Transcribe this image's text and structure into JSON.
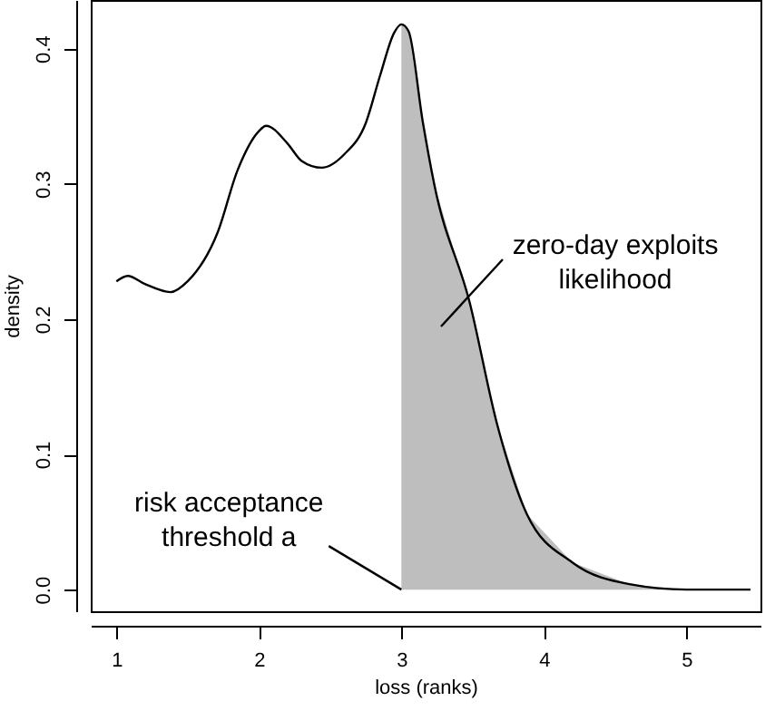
{
  "chart_data": {
    "type": "line",
    "xlabel": "loss (ranks)",
    "ylabel": "density",
    "xlim": [
      0.82,
      5.52
    ],
    "ylim": [
      -0.016,
      0.436
    ],
    "xticks": [
      1,
      2,
      3,
      4,
      5
    ],
    "yticks": [
      {
        "value": 0,
        "label": "0.0"
      },
      0.1,
      0.2,
      0.3,
      0.4
    ],
    "series": [
      {
        "type": "area",
        "color": "#bebebe",
        "x": [
          3.0,
          3.05,
          3.15,
          3.23,
          3.48,
          3.67,
          3.88,
          4.2,
          4.6,
          5.0,
          5.45
        ],
        "values": [
          0.418,
          0.413,
          0.346,
          0.3,
          0.212,
          0.123,
          0.056,
          0.02,
          0.004,
          0,
          0
        ]
      },
      {
        "color": "#000000",
        "x": [
          1.0,
          1.08,
          1.2,
          1.38,
          1.5,
          1.71,
          1.85,
          2.0,
          2.05,
          2.2,
          2.3,
          2.44,
          2.6,
          2.75,
          2.85,
          2.95,
          3.0,
          3.05,
          3.15,
          3.23,
          3.48,
          3.67,
          3.88,
          4.2,
          4.6,
          5.0,
          5.45
        ],
        "values": [
          0.228,
          0.232,
          0.226,
          0.22,
          0.228,
          0.264,
          0.31,
          0.339,
          0.343,
          0.33,
          0.317,
          0.312,
          0.322,
          0.345,
          0.38,
          0.412,
          0.418,
          0.413,
          0.346,
          0.3,
          0.212,
          0.123,
          0.056,
          0.02,
          0.004,
          0,
          0
        ]
      }
    ],
    "annotations": [
      {
        "text": "risk acceptance\nthreshold a",
        "x": 3,
        "y": 0
      },
      "zero-day exploits\nlikelihood"
    ],
    "grid": false,
    "marker": "none",
    "line_style": "solid"
  }
}
